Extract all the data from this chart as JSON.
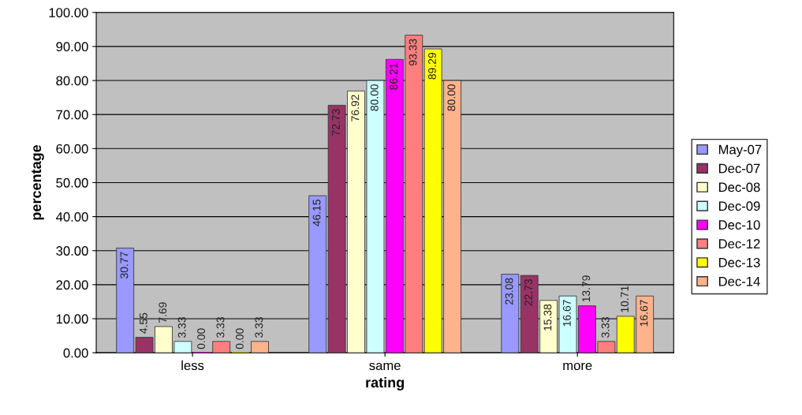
{
  "chart_data": {
    "type": "bar",
    "xlabel": "rating",
    "ylabel": "percentage",
    "categories": [
      "less",
      "same",
      "more"
    ],
    "series": [
      {
        "name": "May-07",
        "color": "#9999ff",
        "values": [
          30.77,
          46.15,
          23.08
        ],
        "value_labels": [
          "30.77",
          "46.15",
          "23.08"
        ]
      },
      {
        "name": "Dec-07",
        "color": "#993366",
        "values": [
          4.55,
          72.73,
          22.73
        ],
        "value_labels": [
          "4.55",
          "72.73",
          "22.73"
        ]
      },
      {
        "name": "Dec-08",
        "color": "#ffffcc",
        "values": [
          7.69,
          76.92,
          15.38
        ],
        "value_labels": [
          "7.69",
          "76.92",
          "15.38"
        ]
      },
      {
        "name": "Dec-09",
        "color": "#ccffff",
        "values": [
          3.33,
          80.0,
          16.67
        ],
        "value_labels": [
          "3.33",
          "80.00",
          "16.67"
        ]
      },
      {
        "name": "Dec-10",
        "color": "#ff00ff",
        "values": [
          0.0,
          86.21,
          13.79
        ],
        "value_labels": [
          "0.00",
          "86.21",
          "13.79"
        ]
      },
      {
        "name": "Dec-12",
        "color": "#ff7f7f",
        "values": [
          3.33,
          93.33,
          3.33
        ],
        "value_labels": [
          "3.33",
          "93.33",
          "3.33"
        ]
      },
      {
        "name": "Dec-13",
        "color": "#ffff00",
        "values": [
          0.0,
          89.29,
          10.71
        ],
        "value_labels": [
          "0.00",
          "89.29",
          "10.71"
        ]
      },
      {
        "name": "Dec-14",
        "color": "#ffb38c",
        "values": [
          3.33,
          80.0,
          16.67
        ],
        "value_labels": [
          "3.33",
          "80.00",
          "16.67"
        ]
      }
    ],
    "ylim": [
      0,
      100
    ],
    "yticks": [
      {
        "value": 0,
        "label": "0.00"
      },
      {
        "value": 10,
        "label": "10.00"
      },
      {
        "value": 20,
        "label": "20.00"
      },
      {
        "value": 30,
        "label": "30.00"
      },
      {
        "value": 40,
        "label": "40.00"
      },
      {
        "value": 50,
        "label": "50.00"
      },
      {
        "value": 60,
        "label": "60.00"
      },
      {
        "value": 70,
        "label": "70.00"
      },
      {
        "value": 80,
        "label": "80.00"
      },
      {
        "value": 90,
        "label": "90.00"
      },
      {
        "value": 100,
        "label": "100.00"
      }
    ],
    "grid": "y",
    "legend": "right"
  }
}
